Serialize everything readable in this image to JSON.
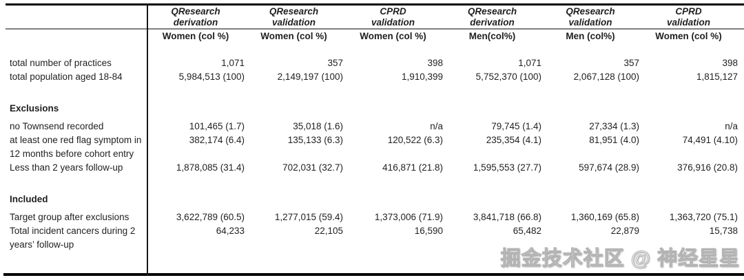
{
  "table": {
    "column_groups": [
      {
        "line1": "QResearch",
        "line2": "derivation"
      },
      {
        "line1": "QResearch",
        "line2": "validation"
      },
      {
        "line1": "CPRD",
        "line2": "validation"
      },
      {
        "line1": "QResearch",
        "line2": "derivation"
      },
      {
        "line1": "QResearch",
        "line2": "validation"
      },
      {
        "line1": "CPRD",
        "line2": "validation"
      }
    ],
    "column_subheaders": [
      "Women (col %)",
      "Women (col %)",
      "Women (col %)",
      "Men(col%)",
      "Men (col%)",
      "Women (col %)"
    ],
    "rows": [
      {
        "type": "data",
        "label": "total number of practices",
        "values": [
          "1,071",
          "357",
          "398",
          "1,071",
          "357",
          "398"
        ]
      },
      {
        "type": "data",
        "label": "total population aged 18-84",
        "values": [
          "5,984,513 (100)",
          "2,149,197 (100)",
          "1,910,399",
          "5,752,370 (100)",
          "2,067,128 (100)",
          "1,815,127"
        ]
      },
      {
        "type": "section",
        "label": "Exclusions"
      },
      {
        "type": "data",
        "label": "no Townsend recorded",
        "values": [
          "101,465 (1.7)",
          "35,018 (1.6)",
          "n/a",
          "79,745 (1.4)",
          "27,334 (1.3)",
          "n/a"
        ]
      },
      {
        "type": "data",
        "label": "at least one red flag symptom in 12 months before cohort entry",
        "values": [
          "382,174 (6.4)",
          "135,133 (6.3)",
          "120,522 (6.3)",
          "235,354 (4.1)",
          "81,951 (4.0)",
          "74,491 (4.10)"
        ]
      },
      {
        "type": "data",
        "label": "Less than 2 years follow-up",
        "values": [
          "1,878,085 (31.4)",
          "702,031 (32.7)",
          "416,871 (21.8)",
          "1,595,553 (27.7)",
          "597,674 (28.9)",
          "376,916 (20.8)"
        ]
      },
      {
        "type": "section",
        "label": "Included"
      },
      {
        "type": "data",
        "label": "Target group after exclusions",
        "values": [
          "3,622,789 (60.5)",
          "1,277,015 (59.4)",
          "1,373,006 (71.9)",
          "3,841,718 (66.8)",
          "1,360,169 (65.8)",
          "1,363,720 (75.1)"
        ]
      },
      {
        "type": "data",
        "label": "Total incident cancers during 2 years’ follow-up",
        "values": [
          "64,233",
          "22,105",
          "16,590",
          "65,482",
          "22,879",
          "15,738"
        ]
      }
    ]
  },
  "watermark": {
    "text": "掘金技术社区 @ 神经星星"
  },
  "colors": {
    "rule_black": "#000000",
    "rule_gray": "#7f7f7f",
    "text": "#1f1f1f",
    "watermark_gray": "#b3b3b3"
  }
}
